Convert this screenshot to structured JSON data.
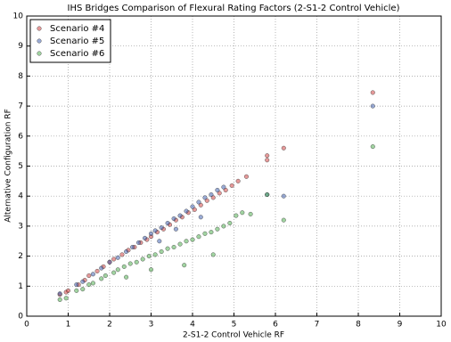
{
  "chart_data": {
    "type": "scatter",
    "title": "IHS Bridges Comparison of Flexural Rating Factors (2-S1-2 Control Vehicle)",
    "xlabel": "2-S1-2 Control Vehicle RF",
    "ylabel": "Alternative Configuration RF",
    "xlim": [
      0,
      10
    ],
    "ylim": [
      0,
      10
    ],
    "xticks": [
      0,
      1,
      2,
      3,
      4,
      5,
      6,
      7,
      8,
      9,
      10
    ],
    "yticks": [
      0,
      1,
      2,
      3,
      4,
      5,
      6,
      7,
      8,
      9,
      10
    ],
    "grid": true,
    "legend": "upper left",
    "series": [
      {
        "name": "Scenario #4",
        "color": "#cc3333",
        "x": [
          0.8,
          0.95,
          1.0,
          1.25,
          1.4,
          1.5,
          1.7,
          1.85,
          2.0,
          2.1,
          2.3,
          2.45,
          2.6,
          2.75,
          2.9,
          3.0,
          3.15,
          3.3,
          3.45,
          3.6,
          3.75,
          3.9,
          4.05,
          4.2,
          4.35,
          4.5,
          4.65,
          4.8,
          4.95,
          5.1,
          5.3,
          5.8,
          5.8,
          6.2,
          8.35
        ],
        "values": [
          0.72,
          0.8,
          0.85,
          1.05,
          1.2,
          1.35,
          1.5,
          1.65,
          1.8,
          1.9,
          2.05,
          2.2,
          2.3,
          2.45,
          2.55,
          2.65,
          2.8,
          2.9,
          3.05,
          3.2,
          3.3,
          3.45,
          3.55,
          3.7,
          3.85,
          3.95,
          4.1,
          4.2,
          4.35,
          4.5,
          4.65,
          5.2,
          5.35,
          5.6,
          7.45
        ]
      },
      {
        "name": "Scenario #5",
        "color": "#3355aa",
        "x": [
          0.8,
          1.2,
          1.35,
          1.6,
          1.8,
          2.0,
          2.2,
          2.4,
          2.55,
          2.7,
          2.85,
          3.0,
          3.1,
          3.25,
          3.4,
          3.55,
          3.7,
          3.85,
          4.0,
          4.15,
          4.3,
          4.45,
          4.6,
          4.75,
          4.2,
          3.6,
          3.2,
          5.8,
          6.2,
          8.35
        ],
        "values": [
          0.75,
          1.05,
          1.15,
          1.4,
          1.6,
          1.8,
          1.95,
          2.15,
          2.3,
          2.45,
          2.6,
          2.75,
          2.85,
          2.95,
          3.1,
          3.25,
          3.35,
          3.5,
          3.65,
          3.8,
          3.95,
          4.05,
          4.2,
          4.3,
          3.3,
          2.9,
          2.5,
          4.05,
          4.0,
          7.0
        ]
      },
      {
        "name": "Scenario #6",
        "color": "#44aa44",
        "x": [
          0.8,
          0.95,
          1.2,
          1.35,
          1.5,
          1.6,
          1.8,
          1.9,
          2.1,
          2.2,
          2.35,
          2.5,
          2.65,
          2.8,
          2.95,
          3.1,
          3.25,
          3.4,
          3.55,
          3.7,
          3.85,
          4.0,
          4.15,
          4.3,
          4.45,
          4.6,
          4.75,
          4.9,
          5.05,
          5.2,
          5.4,
          4.5,
          3.8,
          3.0,
          2.4,
          5.8,
          6.2,
          8.35
        ],
        "values": [
          0.55,
          0.6,
          0.85,
          0.9,
          1.05,
          1.1,
          1.25,
          1.35,
          1.45,
          1.55,
          1.65,
          1.75,
          1.8,
          1.9,
          2.0,
          2.05,
          2.15,
          2.25,
          2.3,
          2.4,
          2.5,
          2.55,
          2.65,
          2.75,
          2.8,
          2.9,
          3.0,
          3.1,
          3.35,
          3.45,
          3.4,
          2.05,
          1.7,
          1.55,
          1.3,
          4.05,
          3.2,
          5.65
        ]
      }
    ]
  }
}
